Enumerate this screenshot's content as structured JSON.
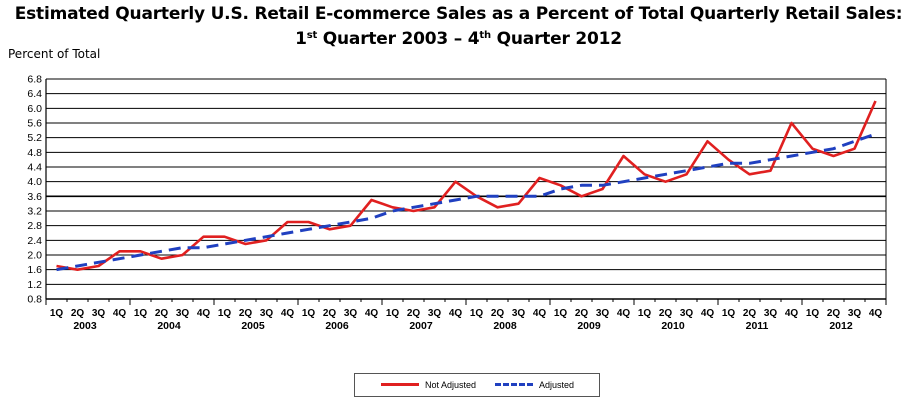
{
  "title_line1": "Estimated Quarterly U.S. Retail E-commerce Sales as a Percent of Total Quarterly Retail Sales:",
  "title_line2": {
    "p1": "1",
    "s1": "st",
    "p2": " Quarter 2003 – 4",
    "s2": "th",
    "p3": " Quarter 2012"
  },
  "chart_data": {
    "type": "line",
    "ylabel": "Percent of Total",
    "ylim": [
      0.8,
      6.8
    ],
    "yticks": [
      "0.8",
      "1.2",
      "1.6",
      "2.0",
      "2.4",
      "2.8",
      "3.2",
      "3.6",
      "4.0",
      "4.4",
      "4.8",
      "5.2",
      "5.6",
      "6.0",
      "6.4",
      "6.8"
    ],
    "quarter_labels": [
      "1Q",
      "2Q",
      "3Q",
      "4Q"
    ],
    "years": [
      "2003",
      "2004",
      "2005",
      "2006",
      "2007",
      "2008",
      "2009",
      "2010",
      "2011",
      "2012"
    ],
    "grid": true,
    "legend_position": "bottom-center",
    "series": [
      {
        "name": "Not Adjusted",
        "color": "#e02020",
        "style": "solid",
        "values": [
          1.7,
          1.6,
          1.7,
          2.1,
          2.1,
          1.9,
          2.0,
          2.5,
          2.5,
          2.3,
          2.4,
          2.9,
          2.9,
          2.7,
          2.8,
          3.5,
          3.3,
          3.2,
          3.3,
          4.0,
          3.6,
          3.3,
          3.4,
          4.1,
          3.9,
          3.6,
          3.8,
          4.7,
          4.2,
          4.0,
          4.2,
          5.1,
          4.6,
          4.2,
          4.3,
          5.6,
          4.9,
          4.7,
          4.9,
          6.2
        ]
      },
      {
        "name": "Adjusted",
        "color": "#2040c0",
        "style": "dashed",
        "values": [
          1.6,
          1.7,
          1.8,
          1.9,
          2.0,
          2.1,
          2.2,
          2.2,
          2.3,
          2.4,
          2.5,
          2.6,
          2.7,
          2.8,
          2.9,
          3.0,
          3.2,
          3.3,
          3.4,
          3.5,
          3.6,
          3.6,
          3.6,
          3.6,
          3.8,
          3.9,
          3.9,
          4.0,
          4.1,
          4.2,
          4.3,
          4.4,
          4.5,
          4.5,
          4.6,
          4.7,
          4.8,
          4.9,
          5.1,
          5.3
        ]
      }
    ]
  }
}
